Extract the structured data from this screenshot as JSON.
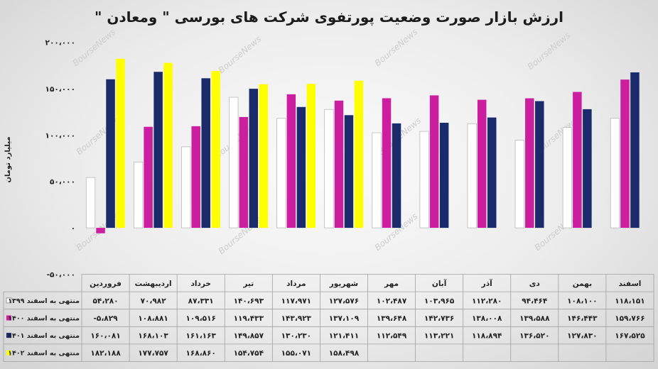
{
  "chart_data": {
    "type": "bar",
    "title": "ارزش بازار صورت وضعیت پورتفوی شرکت های بورسی \" ومعادن \"",
    "xlabel": "",
    "ylabel": "میلیارد تومان",
    "ylim": [
      -50000,
      200000
    ],
    "y_ticks": [
      200000,
      150000,
      100000,
      50000,
      0,
      -50000
    ],
    "y_tick_labels": [
      "۲۰۰،۰۰۰",
      "۱۵۰،۰۰۰",
      "۱۰۰،۰۰۰",
      "۵۰،۰۰۰",
      "۰",
      "-۵۰،۰۰۰"
    ],
    "grid": false,
    "legend": "data-table",
    "categories": [
      "فروردین",
      "اردیبهشت",
      "خرداد",
      "تیر",
      "مرداد",
      "شهریور",
      "مهر",
      "آبان",
      "آذر",
      "دی",
      "بهمن",
      "اسفند"
    ],
    "series": [
      {
        "name": "منتهی به اسفند ۱۳۹۹",
        "color": "#ffffff",
        "values": [
          54280,
          70982,
          87331,
          140693,
          117971,
          127576,
          102487,
          103965,
          112280,
          94464,
          108100,
          118151
        ]
      },
      {
        "name": "منتهی به اسفند ۱۴۰۰",
        "color": "#cc1f9f",
        "values": [
          -5829,
          108881,
          109516,
          119433,
          143923,
          137109,
          139648,
          142736,
          138008,
          139588,
          146443,
          159766
        ]
      },
      {
        "name": "منتهی به اسفند ۱۴۰۱",
        "color": "#1b2a6b",
        "values": [
          160081,
          168103,
          161163,
          149857,
          130230,
          121411,
          112549,
          113221,
          118894,
          136520,
          127830,
          167525
        ]
      },
      {
        "name": "منتهی به اسفند ۱۴۰۲",
        "color": "#ffff00",
        "values": [
          182188,
          177757,
          168860,
          154754,
          155071,
          158498,
          null,
          null,
          null,
          null,
          null,
          null
        ]
      }
    ],
    "data_table": [
      [
        "۵۴،۲۸۰",
        "۷۰،۹۸۲",
        "۸۷،۳۳۱",
        "۱۴۰،۶۹۳",
        "۱۱۷،۹۷۱",
        "۱۲۷،۵۷۶",
        "۱۰۲،۴۸۷",
        "۱۰۳،۹۶۵",
        "۱۱۲،۲۸۰",
        "۹۴،۴۶۴",
        "۱۰۸،۱۰۰",
        "۱۱۸،۱۵۱"
      ],
      [
        "-۵،۸۲۹",
        "۱۰۸،۸۸۱",
        "۱۰۹،۵۱۶",
        "۱۱۹،۴۳۳",
        "۱۴۳،۹۲۳",
        "۱۳۷،۱۰۹",
        "۱۳۹،۶۴۸",
        "۱۴۲،۷۳۶",
        "۱۳۸،۰۰۸",
        "۱۳۹،۵۸۸",
        "۱۴۶،۴۴۳",
        "۱۵۹،۷۶۶"
      ],
      [
        "۱۶۰،۰۸۱",
        "۱۶۸،۱۰۳",
        "۱۶۱،۱۶۳",
        "۱۴۹،۸۵۷",
        "۱۳۰،۲۳۰",
        "۱۲۱،۴۱۱",
        "۱۱۲،۵۴۹",
        "۱۱۳،۲۲۱",
        "۱۱۸،۸۹۴",
        "۱۳۶،۵۲۰",
        "۱۲۷،۸۳۰",
        "۱۶۷،۵۲۵"
      ],
      [
        "۱۸۲،۱۸۸",
        "۱۷۷،۷۵۷",
        "۱۶۸،۸۶۰",
        "۱۵۴،۷۵۴",
        "۱۵۵،۰۷۱",
        "۱۵۸،۴۹۸",
        null,
        null,
        null,
        null,
        null,
        null
      ]
    ]
  },
  "watermark": "BourseNews"
}
